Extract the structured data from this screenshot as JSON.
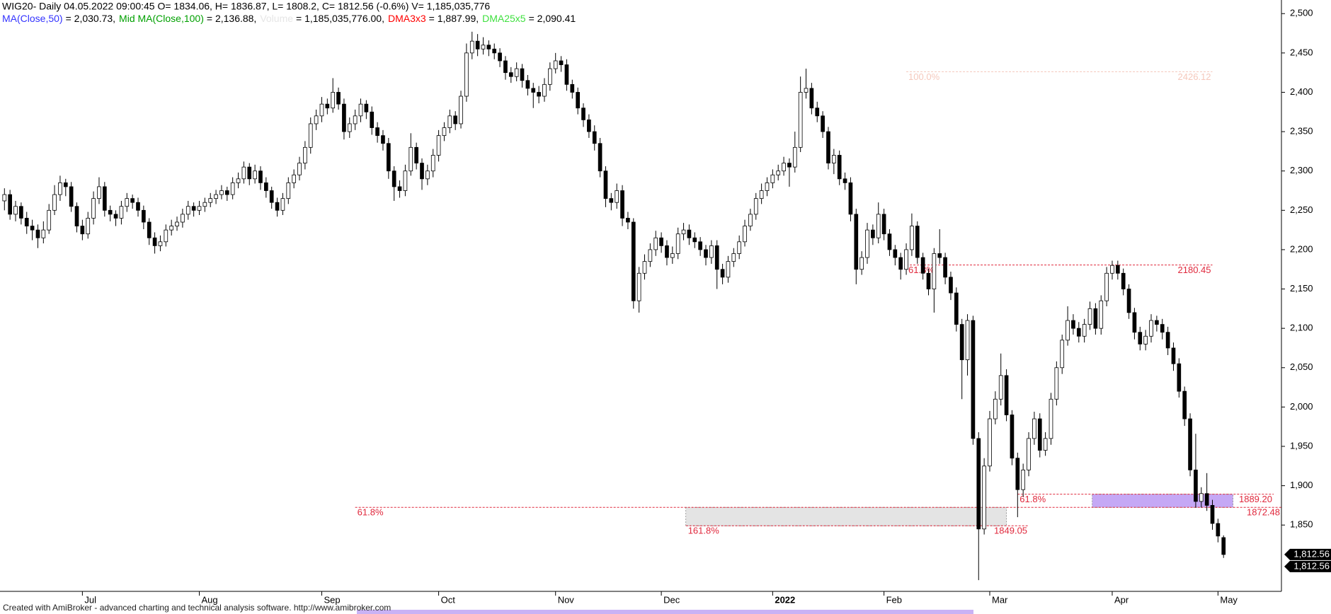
{
  "chart_data": {
    "type": "candlestick",
    "title": "WIG20- Daily 04.05.2022 09:00:45 O= 1834.06, H= 1836.87, L= 1808.2, C= 1812.56 (-0.6%) V= 1,185,035,776",
    "indicators": [
      {
        "name": "MA(Close,50)",
        "text": "= 2,030.73,",
        "color": "#3333ff"
      },
      {
        "name": "Mid MA(Close,100)",
        "text": "= 2,136.88,",
        "color": "#00a000"
      },
      {
        "name": "Volume",
        "text": "= 1,185,035,776.00,",
        "color": "#e6e6e6"
      },
      {
        "name": "DMA3x3",
        "text": "= 1,887.99,",
        "color": "#ff0000"
      },
      {
        "name": "DMA25x5",
        "text": "= 2,090.41",
        "color": "#40e040"
      }
    ],
    "up_color": "#ffffff",
    "down_color": "#000000",
    "wick_color": "#000000",
    "ohlc": [
      [
        2262,
        2278,
        2250,
        2270
      ],
      [
        2270,
        2276,
        2238,
        2245
      ],
      [
        2245,
        2262,
        2236,
        2255
      ],
      [
        2255,
        2260,
        2232,
        2240
      ],
      [
        2240,
        2248,
        2220,
        2230
      ],
      [
        2230,
        2238,
        2212,
        2225
      ],
      [
        2225,
        2232,
        2202,
        2215
      ],
      [
        2215,
        2236,
        2208,
        2225
      ],
      [
        2225,
        2258,
        2220,
        2250
      ],
      [
        2250,
        2282,
        2244,
        2270
      ],
      [
        2270,
        2294,
        2262,
        2285
      ],
      [
        2285,
        2290,
        2268,
        2280
      ],
      [
        2280,
        2286,
        2248,
        2255
      ],
      [
        2255,
        2260,
        2222,
        2230
      ],
      [
        2230,
        2238,
        2212,
        2220
      ],
      [
        2220,
        2248,
        2214,
        2240
      ],
      [
        2240,
        2274,
        2232,
        2265
      ],
      [
        2265,
        2292,
        2258,
        2280
      ],
      [
        2280,
        2286,
        2242,
        2250
      ],
      [
        2250,
        2256,
        2236,
        2245
      ],
      [
        2245,
        2250,
        2230,
        2240
      ],
      [
        2240,
        2262,
        2232,
        2255
      ],
      [
        2255,
        2272,
        2248,
        2265
      ],
      [
        2265,
        2270,
        2252,
        2260
      ],
      [
        2260,
        2266,
        2242,
        2250
      ],
      [
        2250,
        2256,
        2226,
        2235
      ],
      [
        2235,
        2240,
        2206,
        2215
      ],
      [
        2215,
        2222,
        2195,
        2205
      ],
      [
        2205,
        2218,
        2198,
        2210
      ],
      [
        2210,
        2232,
        2204,
        2225
      ],
      [
        2225,
        2238,
        2218,
        2230
      ],
      [
        2230,
        2242,
        2224,
        2235
      ],
      [
        2235,
        2252,
        2228,
        2245
      ],
      [
        2245,
        2262,
        2238,
        2255
      ],
      [
        2255,
        2260,
        2242,
        2250
      ],
      [
        2250,
        2262,
        2244,
        2255
      ],
      [
        2255,
        2266,
        2248,
        2260
      ],
      [
        2260,
        2272,
        2254,
        2265
      ],
      [
        2265,
        2276,
        2258,
        2270
      ],
      [
        2270,
        2282,
        2264,
        2275
      ],
      [
        2275,
        2280,
        2262,
        2270
      ],
      [
        2270,
        2292,
        2264,
        2285
      ],
      [
        2285,
        2298,
        2278,
        2290
      ],
      [
        2290,
        2312,
        2284,
        2305
      ],
      [
        2305,
        2310,
        2282,
        2290
      ],
      [
        2290,
        2308,
        2284,
        2300
      ],
      [
        2300,
        2306,
        2276,
        2285
      ],
      [
        2285,
        2292,
        2266,
        2275
      ],
      [
        2275,
        2280,
        2252,
        2260
      ],
      [
        2260,
        2266,
        2242,
        2250
      ],
      [
        2250,
        2272,
        2244,
        2265
      ],
      [
        2265,
        2292,
        2258,
        2285
      ],
      [
        2285,
        2302,
        2278,
        2295
      ],
      [
        2295,
        2318,
        2288,
        2310
      ],
      [
        2310,
        2338,
        2302,
        2330
      ],
      [
        2330,
        2368,
        2322,
        2360
      ],
      [
        2360,
        2378,
        2352,
        2370
      ],
      [
        2370,
        2394,
        2362,
        2385
      ],
      [
        2385,
        2392,
        2372,
        2380
      ],
      [
        2380,
        2418,
        2374,
        2400
      ],
      [
        2400,
        2406,
        2378,
        2385
      ],
      [
        2385,
        2392,
        2340,
        2350
      ],
      [
        2350,
        2368,
        2342,
        2360
      ],
      [
        2360,
        2378,
        2352,
        2370
      ],
      [
        2370,
        2392,
        2362,
        2385
      ],
      [
        2385,
        2390,
        2366,
        2375
      ],
      [
        2375,
        2382,
        2346,
        2355
      ],
      [
        2355,
        2362,
        2336,
        2345
      ],
      [
        2345,
        2352,
        2326,
        2335
      ],
      [
        2335,
        2342,
        2290,
        2300
      ],
      [
        2300,
        2306,
        2262,
        2280
      ],
      [
        2280,
        2288,
        2266,
        2275
      ],
      [
        2275,
        2308,
        2268,
        2300
      ],
      [
        2300,
        2348,
        2294,
        2330
      ],
      [
        2330,
        2336,
        2302,
        2310
      ],
      [
        2310,
        2316,
        2276,
        2290
      ],
      [
        2290,
        2308,
        2282,
        2300
      ],
      [
        2300,
        2328,
        2292,
        2320
      ],
      [
        2320,
        2352,
        2312,
        2345
      ],
      [
        2345,
        2362,
        2338,
        2355
      ],
      [
        2355,
        2378,
        2348,
        2370
      ],
      [
        2370,
        2376,
        2352,
        2360
      ],
      [
        2360,
        2402,
        2354,
        2395
      ],
      [
        2395,
        2462,
        2388,
        2450
      ],
      [
        2450,
        2477,
        2442,
        2465
      ],
      [
        2465,
        2474,
        2446,
        2455
      ],
      [
        2455,
        2470,
        2448,
        2460
      ],
      [
        2460,
        2466,
        2446,
        2455
      ],
      [
        2455,
        2462,
        2442,
        2450
      ],
      [
        2450,
        2456,
        2432,
        2440
      ],
      [
        2440,
        2446,
        2416,
        2425
      ],
      [
        2425,
        2432,
        2412,
        2420
      ],
      [
        2420,
        2438,
        2414,
        2430
      ],
      [
        2430,
        2436,
        2406,
        2415
      ],
      [
        2415,
        2422,
        2396,
        2405
      ],
      [
        2405,
        2412,
        2380,
        2400
      ],
      [
        2400,
        2408,
        2386,
        2395
      ],
      [
        2395,
        2418,
        2388,
        2410
      ],
      [
        2410,
        2438,
        2402,
        2430
      ],
      [
        2430,
        2450,
        2424,
        2440
      ],
      [
        2440,
        2446,
        2426,
        2435
      ],
      [
        2435,
        2442,
        2402,
        2410
      ],
      [
        2410,
        2416,
        2392,
        2400
      ],
      [
        2400,
        2406,
        2372,
        2380
      ],
      [
        2380,
        2386,
        2356,
        2365
      ],
      [
        2365,
        2372,
        2342,
        2350
      ],
      [
        2350,
        2358,
        2326,
        2335
      ],
      [
        2335,
        2342,
        2292,
        2300
      ],
      [
        2300,
        2306,
        2254,
        2265
      ],
      [
        2265,
        2272,
        2250,
        2260
      ],
      [
        2260,
        2284,
        2252,
        2275
      ],
      [
        2275,
        2282,
        2230,
        2240
      ],
      [
        2240,
        2248,
        2226,
        2235
      ],
      [
        2235,
        2240,
        2125,
        2135
      ],
      [
        2135,
        2178,
        2120,
        2170
      ],
      [
        2170,
        2194,
        2162,
        2185
      ],
      [
        2185,
        2208,
        2178,
        2200
      ],
      [
        2200,
        2224,
        2192,
        2215
      ],
      [
        2215,
        2222,
        2196,
        2205
      ],
      [
        2205,
        2212,
        2180,
        2190
      ],
      [
        2190,
        2204,
        2182,
        2195
      ],
      [
        2195,
        2228,
        2188,
        2220
      ],
      [
        2220,
        2234,
        2212,
        2225
      ],
      [
        2225,
        2232,
        2206,
        2215
      ],
      [
        2215,
        2222,
        2202,
        2210
      ],
      [
        2210,
        2216,
        2192,
        2200
      ],
      [
        2200,
        2206,
        2180,
        2190
      ],
      [
        2190,
        2212,
        2182,
        2205
      ],
      [
        2205,
        2212,
        2150,
        2175
      ],
      [
        2175,
        2182,
        2156,
        2165
      ],
      [
        2165,
        2192,
        2158,
        2185
      ],
      [
        2185,
        2202,
        2178,
        2195
      ],
      [
        2195,
        2218,
        2188,
        2210
      ],
      [
        2210,
        2238,
        2204,
        2230
      ],
      [
        2230,
        2252,
        2224,
        2245
      ],
      [
        2245,
        2272,
        2238,
        2265
      ],
      [
        2265,
        2284,
        2258,
        2275
      ],
      [
        2275,
        2292,
        2268,
        2285
      ],
      [
        2285,
        2302,
        2278,
        2295
      ],
      [
        2295,
        2308,
        2288,
        2300
      ],
      [
        2300,
        2318,
        2294,
        2310
      ],
      [
        2310,
        2316,
        2280,
        2305
      ],
      [
        2305,
        2350,
        2298,
        2330
      ],
      [
        2330,
        2420,
        2324,
        2400
      ],
      [
        2400,
        2430,
        2392,
        2405
      ],
      [
        2405,
        2412,
        2372,
        2380
      ],
      [
        2380,
        2388,
        2362,
        2370
      ],
      [
        2370,
        2376,
        2342,
        2350
      ],
      [
        2350,
        2356,
        2302,
        2310
      ],
      [
        2310,
        2328,
        2296,
        2320
      ],
      [
        2320,
        2326,
        2282,
        2290
      ],
      [
        2290,
        2298,
        2276,
        2285
      ],
      [
        2285,
        2292,
        2236,
        2245
      ],
      [
        2245,
        2252,
        2156,
        2175
      ],
      [
        2175,
        2198,
        2168,
        2190
      ],
      [
        2190,
        2234,
        2182,
        2225
      ],
      [
        2225,
        2232,
        2206,
        2215
      ],
      [
        2215,
        2260,
        2208,
        2245
      ],
      [
        2245,
        2252,
        2212,
        2220
      ],
      [
        2220,
        2226,
        2192,
        2200
      ],
      [
        2200,
        2206,
        2180,
        2190
      ],
      [
        2190,
        2196,
        2162,
        2175
      ],
      [
        2175,
        2208,
        2168,
        2200
      ],
      [
        2200,
        2246,
        2192,
        2230
      ],
      [
        2230,
        2236,
        2182,
        2190
      ],
      [
        2190,
        2196,
        2162,
        2170
      ],
      [
        2170,
        2176,
        2142,
        2150
      ],
      [
        2150,
        2202,
        2120,
        2195
      ],
      [
        2195,
        2226,
        2182,
        2190
      ],
      [
        2190,
        2196,
        2156,
        2165
      ],
      [
        2165,
        2172,
        2136,
        2145
      ],
      [
        2145,
        2152,
        2096,
        2105
      ],
      [
        2105,
        2112,
        2010,
        2060
      ],
      [
        2060,
        2118,
        2040,
        2110
      ],
      [
        2110,
        2116,
        1952,
        1960
      ],
      [
        1960,
        1968,
        1780,
        1845
      ],
      [
        1845,
        1935,
        1838,
        1925
      ],
      [
        1925,
        1995,
        1918,
        1985
      ],
      [
        1985,
        2020,
        1978,
        2010
      ],
      [
        2010,
        2068,
        2002,
        2040
      ],
      [
        2040,
        2048,
        1982,
        1990
      ],
      [
        1990,
        1996,
        1926,
        1935
      ],
      [
        1935,
        1942,
        1860,
        1895
      ],
      [
        1895,
        1928,
        1886,
        1920
      ],
      [
        1920,
        1968,
        1912,
        1960
      ],
      [
        1960,
        1994,
        1952,
        1985
      ],
      [
        1985,
        1992,
        1936,
        1945
      ],
      [
        1945,
        1968,
        1938,
        1960
      ],
      [
        1960,
        2018,
        1952,
        2010
      ],
      [
        2010,
        2058,
        2002,
        2050
      ],
      [
        2050,
        2092,
        2042,
        2085
      ],
      [
        2085,
        2128,
        2078,
        2110
      ],
      [
        2110,
        2118,
        2092,
        2100
      ],
      [
        2100,
        2108,
        2082,
        2090
      ],
      [
        2090,
        2112,
        2082,
        2105
      ],
      [
        2105,
        2134,
        2098,
        2125
      ],
      [
        2125,
        2132,
        2092,
        2100
      ],
      [
        2100,
        2142,
        2092,
        2135
      ],
      [
        2135,
        2178,
        2128,
        2170
      ],
      [
        2170,
        2186,
        2162,
        2180
      ],
      [
        2180,
        2186,
        2162,
        2170
      ],
      [
        2170,
        2176,
        2142,
        2150
      ],
      [
        2150,
        2156,
        2112,
        2120
      ],
      [
        2120,
        2126,
        2086,
        2095
      ],
      [
        2095,
        2102,
        2072,
        2080
      ],
      [
        2080,
        2098,
        2072,
        2090
      ],
      [
        2090,
        2118,
        2082,
        2110
      ],
      [
        2110,
        2116,
        2096,
        2105
      ],
      [
        2105,
        2112,
        2086,
        2095
      ],
      [
        2095,
        2102,
        2066,
        2075
      ],
      [
        2075,
        2082,
        2046,
        2055
      ],
      [
        2055,
        2062,
        2012,
        2020
      ],
      [
        2020,
        2026,
        1976,
        1985
      ],
      [
        1985,
        1992,
        1912,
        1920
      ],
      [
        1920,
        1966,
        1872,
        1880
      ],
      [
        1880,
        1898,
        1872,
        1890
      ],
      [
        1890,
        1916,
        1868,
        1875
      ],
      [
        1875,
        1882,
        1844,
        1852
      ],
      [
        1852,
        1858,
        1828,
        1836
      ],
      [
        1834.06,
        1836.87,
        1808.2,
        1812.56
      ]
    ],
    "xlim": [
      -0.8,
      229.4
    ],
    "xticks": [
      {
        "value": 14,
        "label": "Jul"
      },
      {
        "value": 35,
        "label": "Aug"
      },
      {
        "value": 57,
        "label": "Sep"
      },
      {
        "value": 78,
        "label": "Oct"
      },
      {
        "value": 99,
        "label": "Nov"
      },
      {
        "value": 118,
        "label": "Dec"
      },
      {
        "value": 138,
        "label": "2022",
        "bold": true
      },
      {
        "value": 158,
        "label": "Feb"
      },
      {
        "value": 177,
        "label": "Mar"
      },
      {
        "value": 199,
        "label": "Apr"
      },
      {
        "value": 218,
        "label": "May"
      }
    ],
    "ylim": [
      1765.7,
      2517.3
    ],
    "yticks": [
      {
        "value": 1850,
        "label": "1,850"
      },
      {
        "value": 1900,
        "label": "1,900"
      },
      {
        "value": 1950,
        "label": "1,950"
      },
      {
        "value": 2000,
        "label": "2,000"
      },
      {
        "value": 2050,
        "label": "2,050"
      },
      {
        "value": 2100,
        "label": "2,100"
      },
      {
        "value": 2150,
        "label": "2,150"
      },
      {
        "value": 2200,
        "label": "2,200"
      },
      {
        "value": 2250,
        "label": "2,250"
      },
      {
        "value": 2300,
        "label": "2,300"
      },
      {
        "value": 2350,
        "label": "2,350"
      },
      {
        "value": 2400,
        "label": "2,400"
      },
      {
        "value": 2450,
        "label": "2,450"
      },
      {
        "value": 2500,
        "label": "2,500"
      }
    ],
    "zones": [
      {
        "from": 1849.05,
        "to": 1872.48,
        "x": [
          122.4,
          180
        ],
        "color": "#e4e4e4"
      },
      {
        "from": 1872.48,
        "to": 1889.2,
        "x": [
          195.4,
          220.7
        ],
        "color": "#c5a8f5"
      }
    ],
    "levels": [
      {
        "value": 2426.12,
        "label": "2426.12",
        "tag": "100.0%",
        "x": [
          162,
          217
        ],
        "color": "#f5c8bc"
      },
      {
        "value": 2180.45,
        "label": "2180.45",
        "tag": "61.8%",
        "x": [
          162,
          217
        ],
        "color": "#e0283c"
      },
      {
        "value": 1889.2,
        "label": "1889.20",
        "tag": "61.8%",
        "x": [
          182,
          228
        ],
        "color": "#e0283c"
      },
      {
        "value": 1872.48,
        "label": "1872.48",
        "tag": "61.8%",
        "x": [
          63,
          229.4
        ],
        "color": "#e0283c"
      },
      {
        "value": 1849.05,
        "label": "1849.05",
        "tag": "161.8%",
        "x": [
          122.4,
          184
        ],
        "color": "#e0283c"
      }
    ],
    "last_price": {
      "value": 1812.56,
      "label": "1,812.56"
    }
  },
  "footer": "Created with AmiBroker - advanced charting and technical analysis software. http://www.amibroker.com"
}
